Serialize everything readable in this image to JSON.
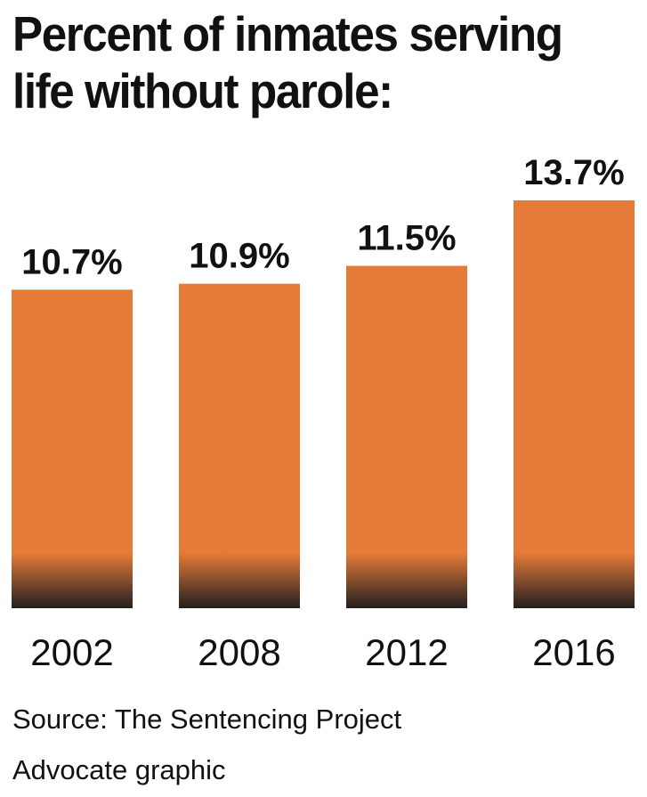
{
  "chart_data": {
    "type": "bar",
    "title": "Percent of inmates serving life without parole:",
    "categories": [
      "2002",
      "2008",
      "2012",
      "2016"
    ],
    "values": [
      10.7,
      10.9,
      11.5,
      13.7
    ],
    "value_labels": [
      "10.7%",
      "10.9%",
      "11.5%",
      "13.7%"
    ],
    "xlabel": "",
    "ylabel": "",
    "ylim": [
      0,
      15
    ],
    "grid": false,
    "legend": "none",
    "bar_color": "#E57B38",
    "bar_base_color": "#231F20"
  },
  "source": "Source: The Sentencing Project",
  "credit": "Advocate graphic"
}
